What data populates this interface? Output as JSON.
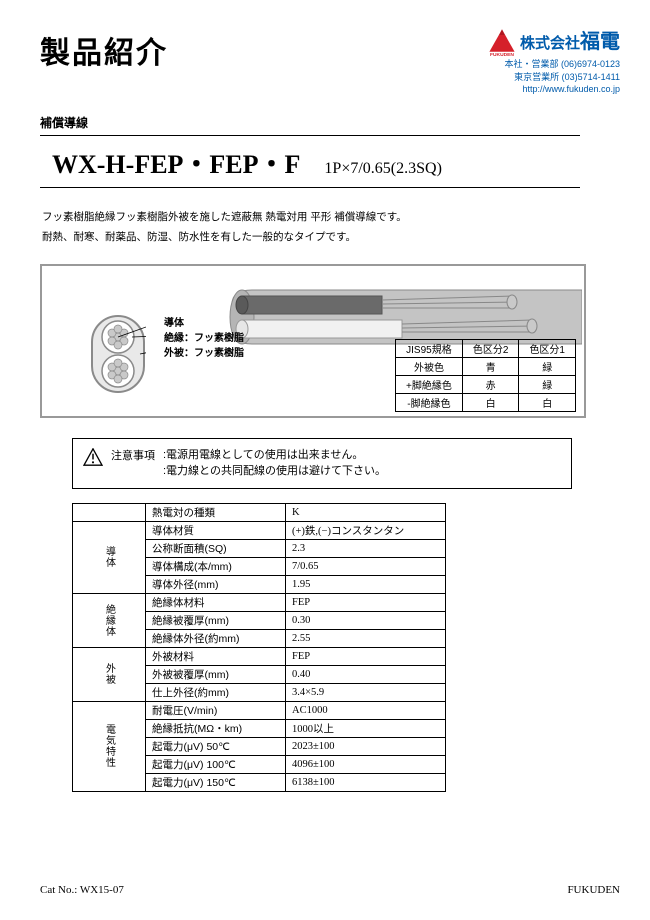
{
  "header": {
    "page_title": "製品紹介",
    "company_small": "株式会社",
    "company_big": "福電",
    "logo_text": "FUKUDEN",
    "logo_color": "#d5202a",
    "contact": [
      "本社・営業部 (06)6974-0123",
      "東京営業所 (03)5714-1411",
      "http://www.fukuden.co.jp"
    ]
  },
  "subheading": "補償導線",
  "product": {
    "name": "WX-H-FEP・FEP・F",
    "spec": "1P×7/0.65(2.3SQ)"
  },
  "description": [
    "フッ素樹脂絶縁フッ素樹脂外被を施した遮蔽無 熱電対用 平形 補償導線です。",
    "耐熱、耐寒、耐薬品、防湿、防水性を有した一般的なタイプです。"
  ],
  "diagram": {
    "labels": [
      "導体",
      "絶縁：フッ素樹脂",
      "外被：フッ素樹脂"
    ],
    "colors": {
      "sheath": "#c4c4c4",
      "inner_dark": "#6a6a6a",
      "inner_light": "#f1f1f1",
      "conductor": "#b0b0b0",
      "outline": "#8a8a8a"
    }
  },
  "mini_table": {
    "headers": [
      "JIS95規格",
      "色区分2",
      "色区分1"
    ],
    "rows": [
      [
        "外被色",
        "青",
        "緑"
      ],
      [
        "+脚絶縁色",
        "赤",
        "緑"
      ],
      [
        "-脚絶縁色",
        "白",
        "白"
      ]
    ]
  },
  "caution": {
    "label": "注意事項",
    "lines": [
      ":電源用電線としての使用は出来ません。",
      ":電力線との共同配線の使用は避けて下さい。"
    ]
  },
  "spec_table": [
    {
      "group": "",
      "rows": [
        [
          "熱電対の種類",
          "K"
        ]
      ]
    },
    {
      "group": "導体",
      "rows": [
        [
          "導体材質",
          "(+)鉄,(−)コンスタンタン"
        ],
        [
          "公称断面積(SQ)",
          "2.3"
        ],
        [
          "導体構成(本/mm)",
          "7/0.65"
        ],
        [
          "導体外径(mm)",
          "1.95"
        ]
      ]
    },
    {
      "group": "絶縁体",
      "rows": [
        [
          "絶縁体材料",
          "FEP"
        ],
        [
          "絶縁被覆厚(mm)",
          "0.30"
        ],
        [
          "絶縁体外径(約mm)",
          "2.55"
        ]
      ]
    },
    {
      "group": "外被",
      "rows": [
        [
          "外被材料",
          "FEP"
        ],
        [
          "外被被覆厚(mm)",
          "0.40"
        ],
        [
          "仕上外径(約mm)",
          "3.4×5.9"
        ]
      ]
    },
    {
      "group": "電気特性",
      "rows": [
        [
          "耐電圧(V/min)",
          "AC1000"
        ],
        [
          "絶縁抵抗(MΩ・km)",
          "1000以上"
        ],
        [
          "起電力(μV) 50℃",
          "2023±100"
        ],
        [
          "起電力(μV) 100℃",
          "4096±100"
        ],
        [
          "起電力(μV) 150℃",
          "6138±100"
        ]
      ]
    }
  ],
  "footer": {
    "cat_no": "Cat No.: WX15-07",
    "brand": "FUKUDEN"
  }
}
